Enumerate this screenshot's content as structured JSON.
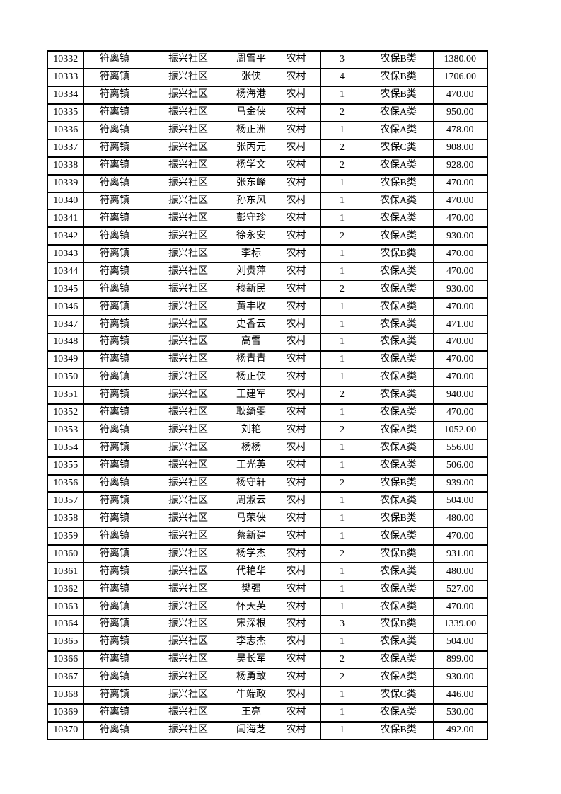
{
  "table": {
    "rows": [
      [
        "10332",
        "符离镇",
        "振兴社区",
        "周雪平",
        "农村",
        "3",
        "农保B类",
        "1380.00"
      ],
      [
        "10333",
        "符离镇",
        "振兴社区",
        "张侠",
        "农村",
        "4",
        "农保B类",
        "1706.00"
      ],
      [
        "10334",
        "符离镇",
        "振兴社区",
        "杨海港",
        "农村",
        "1",
        "农保B类",
        "470.00"
      ],
      [
        "10335",
        "符离镇",
        "振兴社区",
        "马金侠",
        "农村",
        "2",
        "农保A类",
        "950.00"
      ],
      [
        "10336",
        "符离镇",
        "振兴社区",
        "杨正洲",
        "农村",
        "1",
        "农保A类",
        "478.00"
      ],
      [
        "10337",
        "符离镇",
        "振兴社区",
        "张丙元",
        "农村",
        "2",
        "农保C类",
        "908.00"
      ],
      [
        "10338",
        "符离镇",
        "振兴社区",
        "杨学文",
        "农村",
        "2",
        "农保A类",
        "928.00"
      ],
      [
        "10339",
        "符离镇",
        "振兴社区",
        "张东峰",
        "农村",
        "1",
        "农保B类",
        "470.00"
      ],
      [
        "10340",
        "符离镇",
        "振兴社区",
        "孙东风",
        "农村",
        "1",
        "农保A类",
        "470.00"
      ],
      [
        "10341",
        "符离镇",
        "振兴社区",
        "彭守珍",
        "农村",
        "1",
        "农保A类",
        "470.00"
      ],
      [
        "10342",
        "符离镇",
        "振兴社区",
        "徐永安",
        "农村",
        "2",
        "农保A类",
        "930.00"
      ],
      [
        "10343",
        "符离镇",
        "振兴社区",
        "李标",
        "农村",
        "1",
        "农保B类",
        "470.00"
      ],
      [
        "10344",
        "符离镇",
        "振兴社区",
        "刘贵萍",
        "农村",
        "1",
        "农保A类",
        "470.00"
      ],
      [
        "10345",
        "符离镇",
        "振兴社区",
        "穆新民",
        "农村",
        "2",
        "农保A类",
        "930.00"
      ],
      [
        "10346",
        "符离镇",
        "振兴社区",
        "黄丰收",
        "农村",
        "1",
        "农保A类",
        "470.00"
      ],
      [
        "10347",
        "符离镇",
        "振兴社区",
        "史香云",
        "农村",
        "1",
        "农保A类",
        "471.00"
      ],
      [
        "10348",
        "符离镇",
        "振兴社区",
        "高雪",
        "农村",
        "1",
        "农保A类",
        "470.00"
      ],
      [
        "10349",
        "符离镇",
        "振兴社区",
        "杨青青",
        "农村",
        "1",
        "农保A类",
        "470.00"
      ],
      [
        "10350",
        "符离镇",
        "振兴社区",
        "杨正侠",
        "农村",
        "1",
        "农保A类",
        "470.00"
      ],
      [
        "10351",
        "符离镇",
        "振兴社区",
        "王建军",
        "农村",
        "2",
        "农保A类",
        "940.00"
      ],
      [
        "10352",
        "符离镇",
        "振兴社区",
        "耿绮雯",
        "农村",
        "1",
        "农保A类",
        "470.00"
      ],
      [
        "10353",
        "符离镇",
        "振兴社区",
        "刘艳",
        "农村",
        "2",
        "农保A类",
        "1052.00"
      ],
      [
        "10354",
        "符离镇",
        "振兴社区",
        "杨杨",
        "农村",
        "1",
        "农保A类",
        "556.00"
      ],
      [
        "10355",
        "符离镇",
        "振兴社区",
        "王光英",
        "农村",
        "1",
        "农保A类",
        "506.00"
      ],
      [
        "10356",
        "符离镇",
        "振兴社区",
        "杨守轩",
        "农村",
        "2",
        "农保B类",
        "939.00"
      ],
      [
        "10357",
        "符离镇",
        "振兴社区",
        "周淑云",
        "农村",
        "1",
        "农保A类",
        "504.00"
      ],
      [
        "10358",
        "符离镇",
        "振兴社区",
        "马荣侠",
        "农村",
        "1",
        "农保B类",
        "480.00"
      ],
      [
        "10359",
        "符离镇",
        "振兴社区",
        "蔡新建",
        "农村",
        "1",
        "农保A类",
        "470.00"
      ],
      [
        "10360",
        "符离镇",
        "振兴社区",
        "杨学杰",
        "农村",
        "2",
        "农保B类",
        "931.00"
      ],
      [
        "10361",
        "符离镇",
        "振兴社区",
        "代艳华",
        "农村",
        "1",
        "农保A类",
        "480.00"
      ],
      [
        "10362",
        "符离镇",
        "振兴社区",
        "樊强",
        "农村",
        "1",
        "农保A类",
        "527.00"
      ],
      [
        "10363",
        "符离镇",
        "振兴社区",
        "怀天英",
        "农村",
        "1",
        "农保A类",
        "470.00"
      ],
      [
        "10364",
        "符离镇",
        "振兴社区",
        "宋深根",
        "农村",
        "3",
        "农保B类",
        "1339.00"
      ],
      [
        "10365",
        "符离镇",
        "振兴社区",
        "李志杰",
        "农村",
        "1",
        "农保A类",
        "504.00"
      ],
      [
        "10366",
        "符离镇",
        "振兴社区",
        "吴长军",
        "农村",
        "2",
        "农保A类",
        "899.00"
      ],
      [
        "10367",
        "符离镇",
        "振兴社区",
        "杨勇敢",
        "农村",
        "2",
        "农保A类",
        "930.00"
      ],
      [
        "10368",
        "符离镇",
        "振兴社区",
        "牛端政",
        "农村",
        "1",
        "农保C类",
        "446.00"
      ],
      [
        "10369",
        "符离镇",
        "振兴社区",
        "王亮",
        "农村",
        "1",
        "农保A类",
        "530.00"
      ],
      [
        "10370",
        "符离镇",
        "振兴社区",
        "闫海芝",
        "农村",
        "1",
        "农保B类",
        "492.00"
      ]
    ]
  }
}
